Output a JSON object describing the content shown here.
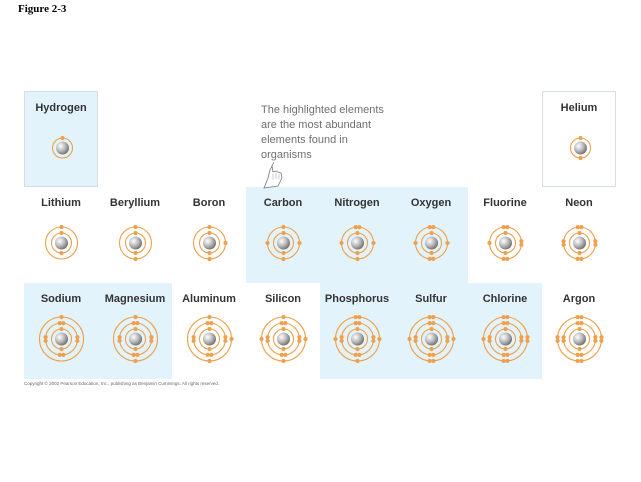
{
  "figure_label": "Figure 2-3",
  "note": "The highlighted elements are the most abundant elements found in organisms",
  "copyright": "Copyright © 2002 Pearson Education, Inc., publishing as Benjamin Cummings. All rights reserved.",
  "colors": {
    "highlight": "#e3f3fc",
    "electron": "#f0a04b",
    "shell": "#f0a04b",
    "nucleus": "#9a9a9a"
  },
  "elements": [
    {
      "name": "Hydrogen",
      "period": 1,
      "group": 1,
      "shells": [
        1
      ],
      "highlighted": true
    },
    {
      "name": "Helium",
      "period": 1,
      "group": 8,
      "shells": [
        2
      ],
      "highlighted": false
    },
    {
      "name": "Lithium",
      "period": 2,
      "group": 1,
      "shells": [
        2,
        1
      ],
      "highlighted": false
    },
    {
      "name": "Beryllium",
      "period": 2,
      "group": 2,
      "shells": [
        2,
        2
      ],
      "highlighted": false
    },
    {
      "name": "Boron",
      "period": 2,
      "group": 3,
      "shells": [
        2,
        3
      ],
      "highlighted": false
    },
    {
      "name": "Carbon",
      "period": 2,
      "group": 4,
      "shells": [
        2,
        4
      ],
      "highlighted": true
    },
    {
      "name": "Nitrogen",
      "period": 2,
      "group": 5,
      "shells": [
        2,
        5
      ],
      "highlighted": true
    },
    {
      "name": "Oxygen",
      "period": 2,
      "group": 6,
      "shells": [
        2,
        6
      ],
      "highlighted": true
    },
    {
      "name": "Fluorine",
      "period": 2,
      "group": 7,
      "shells": [
        2,
        7
      ],
      "highlighted": false
    },
    {
      "name": "Neon",
      "period": 2,
      "group": 8,
      "shells": [
        2,
        8
      ],
      "highlighted": false
    },
    {
      "name": "Sodium",
      "period": 3,
      "group": 1,
      "shells": [
        2,
        8,
        1
      ],
      "highlighted": true
    },
    {
      "name": "Magnesium",
      "period": 3,
      "group": 2,
      "shells": [
        2,
        8,
        2
      ],
      "highlighted": true
    },
    {
      "name": "Aluminum",
      "period": 3,
      "group": 3,
      "shells": [
        2,
        8,
        3
      ],
      "highlighted": false
    },
    {
      "name": "Silicon",
      "period": 3,
      "group": 4,
      "shells": [
        2,
        8,
        4
      ],
      "highlighted": false
    },
    {
      "name": "Phosphorus",
      "period": 3,
      "group": 5,
      "shells": [
        2,
        8,
        5
      ],
      "highlighted": true
    },
    {
      "name": "Sulfur",
      "period": 3,
      "group": 6,
      "shells": [
        2,
        8,
        6
      ],
      "highlighted": true
    },
    {
      "name": "Chlorine",
      "period": 3,
      "group": 7,
      "shells": [
        2,
        8,
        7
      ],
      "highlighted": true
    },
    {
      "name": "Argon",
      "period": 3,
      "group": 8,
      "shells": [
        2,
        8,
        8
      ],
      "highlighted": false
    }
  ]
}
